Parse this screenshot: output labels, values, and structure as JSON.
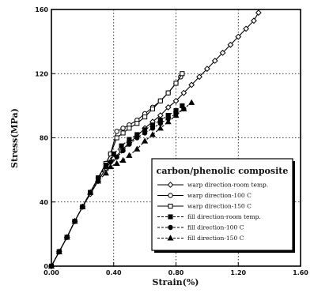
{
  "chart_data": {
    "type": "line",
    "title": "",
    "xlabel": "Strain(%)",
    "ylabel": "Stress(MPa)",
    "xlim": [
      0,
      1.6
    ],
    "ylim": [
      0,
      160
    ],
    "xticks": [
      0,
      0.4,
      0.8,
      1.2,
      1.6
    ],
    "yticks": [
      0,
      40,
      80,
      120,
      160
    ],
    "x_tick_labels": [
      "0.00",
      "0.40",
      "0.80",
      "1.20",
      "1.60"
    ],
    "y_tick_labels": [
      "0",
      "40",
      "80",
      "120",
      "160"
    ],
    "grid": true,
    "legend_title": "carbon/phenolic composite",
    "legend_position": "lower-right",
    "series": [
      {
        "name": "warp direction-room temp.",
        "marker": "diamond-open",
        "line": "solid",
        "x": [
          0,
          0.05,
          0.1,
          0.15,
          0.2,
          0.25,
          0.3,
          0.35,
          0.4,
          0.45,
          0.5,
          0.55,
          0.6,
          0.65,
          0.7,
          0.75,
          0.8,
          0.85,
          0.9,
          0.95,
          1.0,
          1.05,
          1.1,
          1.15,
          1.2,
          1.25,
          1.3,
          1.33
        ],
        "y": [
          0,
          9,
          18,
          28,
          37,
          45,
          53,
          61,
          67,
          72,
          77,
          81,
          86,
          90,
          94,
          99,
          103,
          108,
          113,
          118,
          123,
          128,
          133,
          138,
          143,
          148,
          153,
          158
        ]
      },
      {
        "name": "warp direction-100 C",
        "marker": "circle-open",
        "line": "solid",
        "x": [
          0,
          0.05,
          0.1,
          0.15,
          0.2,
          0.25,
          0.3,
          0.35,
          0.38,
          0.42,
          0.46,
          0.5,
          0.55,
          0.6,
          0.65,
          0.7,
          0.75,
          0.8,
          0.83
        ],
        "y": [
          0,
          9,
          18,
          28,
          37,
          46,
          55,
          64,
          70,
          84,
          86,
          88,
          91,
          95,
          99,
          103,
          108,
          114,
          118
        ]
      },
      {
        "name": "warp direction-150 C",
        "marker": "square-open",
        "line": "solid",
        "x": [
          0,
          0.05,
          0.1,
          0.15,
          0.2,
          0.25,
          0.3,
          0.35,
          0.38,
          0.42,
          0.46,
          0.5,
          0.55,
          0.6,
          0.65,
          0.7,
          0.75,
          0.8,
          0.84
        ],
        "y": [
          0,
          9,
          18,
          28,
          37,
          46,
          55,
          64,
          70,
          80,
          83,
          86,
          89,
          93,
          98,
          103,
          108,
          114,
          120
        ]
      },
      {
        "name": "fill direction-room temp.",
        "marker": "square-filled",
        "line": "dashed",
        "x": [
          0,
          0.05,
          0.1,
          0.15,
          0.2,
          0.25,
          0.3,
          0.35,
          0.4,
          0.45,
          0.5,
          0.55,
          0.6,
          0.65,
          0.7,
          0.75,
          0.8,
          0.84
        ],
        "y": [
          0,
          9,
          18,
          28,
          37,
          46,
          55,
          63,
          70,
          75,
          79,
          82,
          85,
          88,
          91,
          94,
          97,
          100
        ]
      },
      {
        "name": "fill direction-100 C",
        "marker": "circle-filled",
        "line": "dashed",
        "x": [
          0,
          0.05,
          0.1,
          0.15,
          0.2,
          0.25,
          0.3,
          0.35,
          0.38,
          0.42,
          0.46,
          0.5,
          0.55,
          0.6,
          0.65,
          0.7,
          0.75,
          0.8,
          0.85
        ],
        "y": [
          0,
          9,
          18,
          28,
          37,
          46,
          55,
          62,
          65,
          68,
          72,
          76,
          80,
          83,
          86,
          89,
          92,
          95,
          98
        ]
      },
      {
        "name": "fill direction-150 C",
        "marker": "triangle-filled",
        "line": "dashed",
        "x": [
          0,
          0.05,
          0.1,
          0.15,
          0.2,
          0.25,
          0.3,
          0.35,
          0.38,
          0.42,
          0.46,
          0.5,
          0.55,
          0.6,
          0.65,
          0.7,
          0.75,
          0.8,
          0.85,
          0.9
        ],
        "y": [
          0,
          9,
          18,
          28,
          37,
          46,
          53,
          58,
          62,
          64,
          66,
          69,
          73,
          78,
          82,
          86,
          90,
          94,
          98,
          102
        ]
      }
    ]
  }
}
